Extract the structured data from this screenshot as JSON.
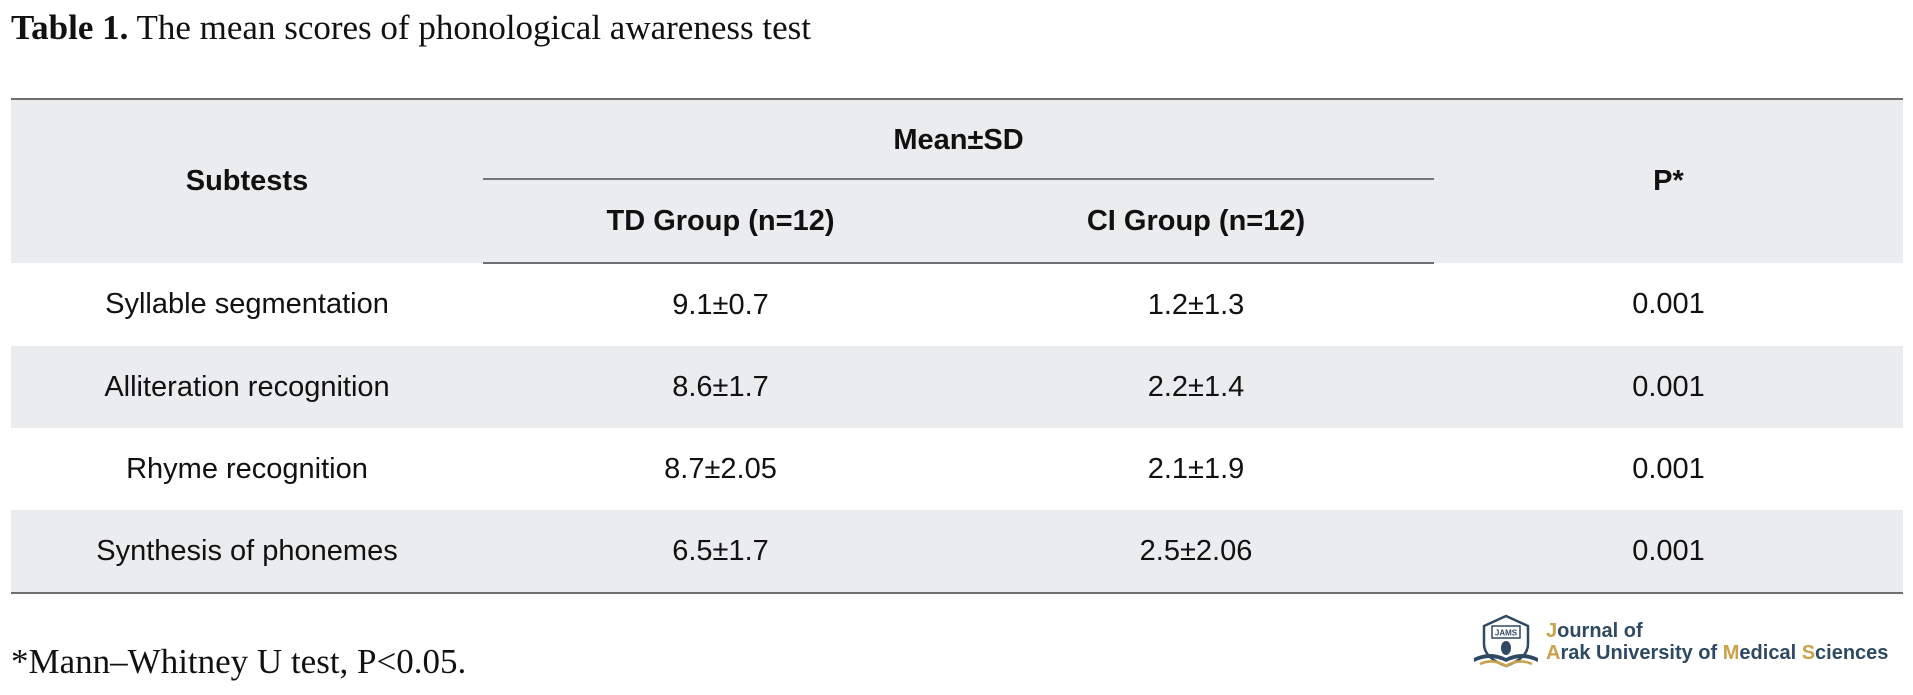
{
  "caption": {
    "label": "Table 1.",
    "text": "The mean scores of phonological awareness test"
  },
  "table": {
    "headers": {
      "subtests": "Subtests",
      "mean_sd": "Mean±SD",
      "td_group": "TD Group (n=12)",
      "ci_group": "CI Group (n=12)",
      "p": "P*"
    },
    "rows": [
      {
        "subtest": "Syllable segmentation",
        "td": "9.1±0.7",
        "ci": "1.2±1.3",
        "p": "0.001"
      },
      {
        "subtest": "Alliteration recognition",
        "td": "8.6±1.7",
        "ci": "2.2±1.4",
        "p": "0.001"
      },
      {
        "subtest": "Rhyme recognition",
        "td": "8.7±2.05",
        "ci": "2.1±1.9",
        "p": "0.001"
      },
      {
        "subtest": "Synthesis of phonemes",
        "td": "6.5±1.7",
        "ci": "2.5±2.06",
        "p": "0.001"
      }
    ]
  },
  "footnote": "*Mann–Whitney U test, P<0.05.",
  "logo": {
    "line1_initial": "J",
    "line1_rest": "ournal of",
    "line2_a": "A",
    "line2_rest1": "rak University of ",
    "line2_m": "M",
    "line2_rest2": "edical ",
    "line2_s": "S",
    "line2_rest3": "ciences",
    "emblem_text": "JAMS",
    "colors": {
      "primary": "#2e4a62",
      "accent": "#c9a24a"
    }
  },
  "colors": {
    "header_bg": "#ebecee",
    "stripe_bg": "#ebecee",
    "rule": "#6f6f6f"
  }
}
